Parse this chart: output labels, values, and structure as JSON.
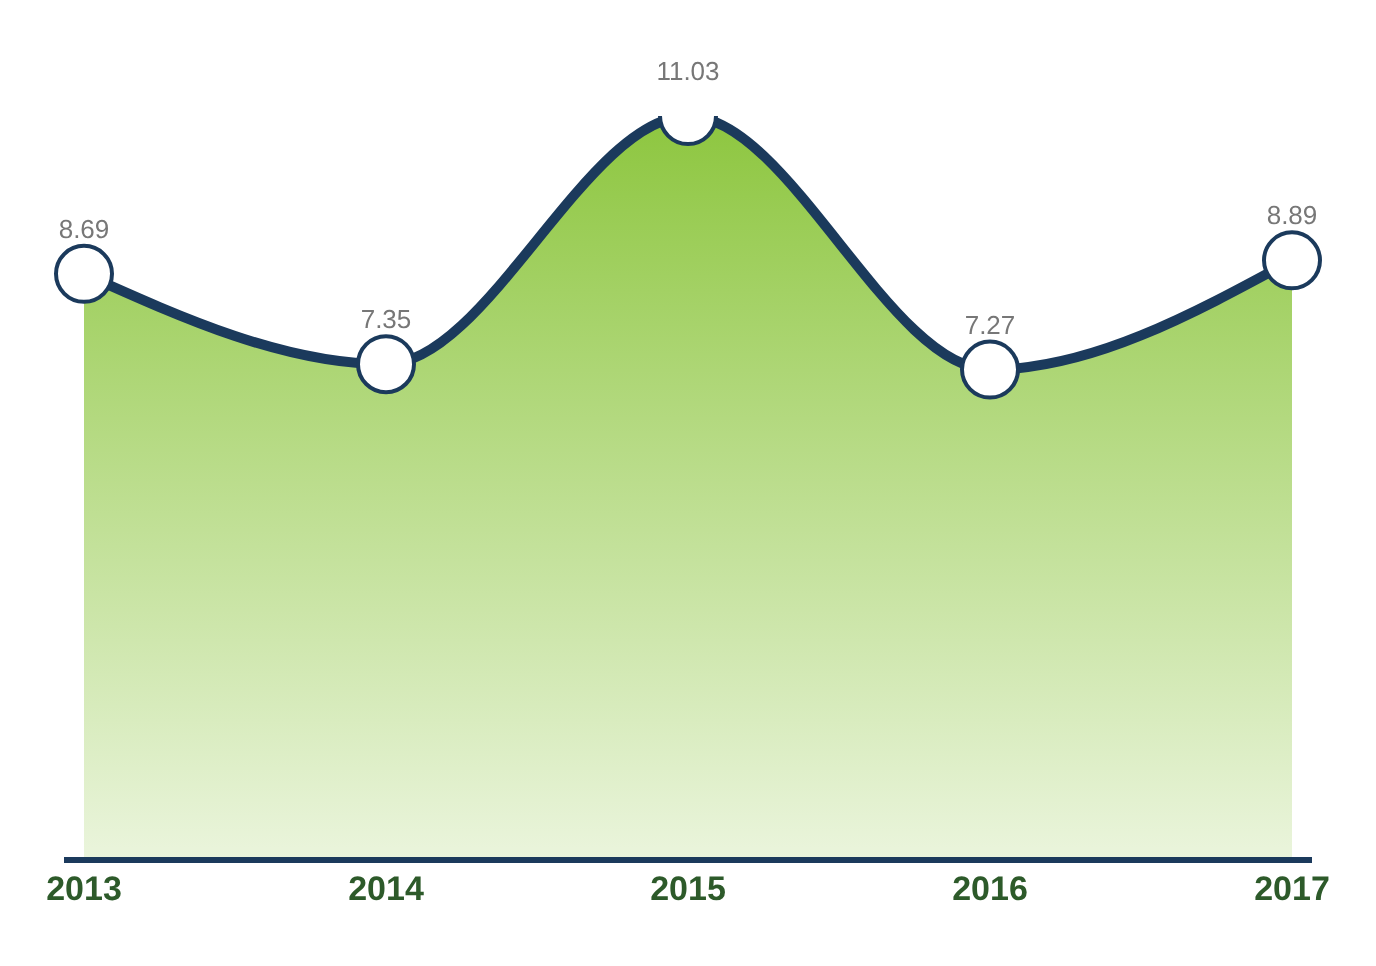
{
  "chart_data": {
    "type": "area",
    "categories": [
      "2013",
      "2014",
      "2015",
      "2016",
      "2017"
    ],
    "series": [
      {
        "color": "#8dc63f",
        "values": [
          8.69,
          7.35,
          11.03,
          7.27,
          8.89
        ]
      }
    ],
    "tick_labels": "x",
    "data_labels": true,
    "marker": "circle",
    "grid": false,
    "legend": false
  }
}
